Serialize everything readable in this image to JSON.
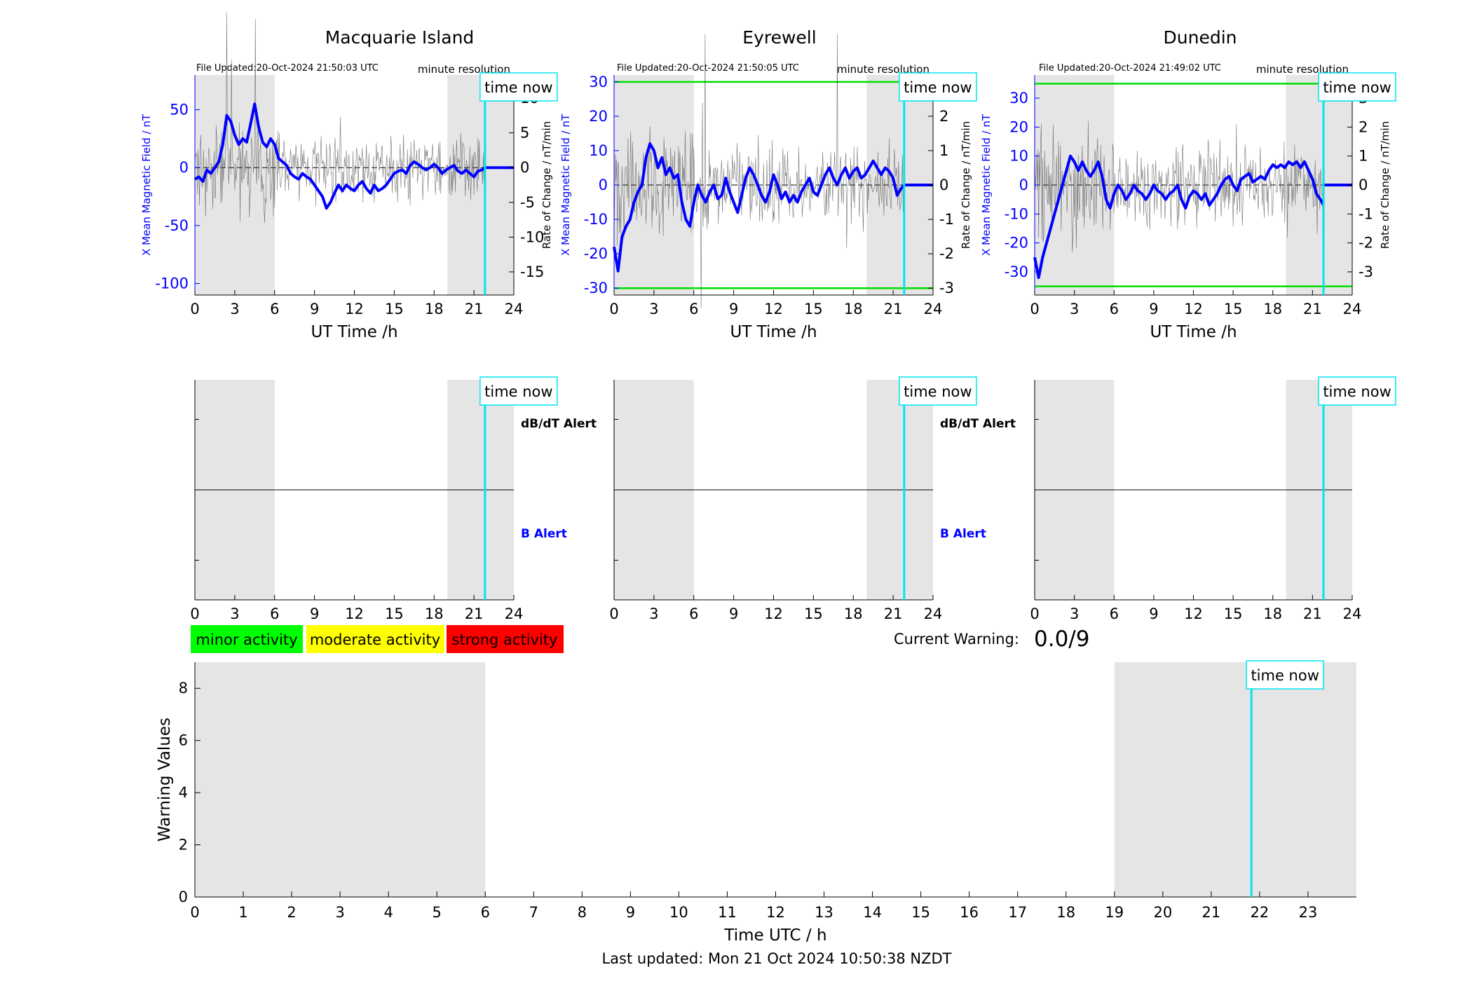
{
  "colors": {
    "field": "#0000ff",
    "rate": "#000000",
    "night": "#e5e5e5",
    "now": "#00e5ee",
    "threshold": "#00dd00",
    "minor": "#00ff00",
    "moderate": "#ffff00",
    "strong": "#ff0000"
  },
  "common": {
    "time_now_label": "time now",
    "minute_resolution": "minute resolution",
    "xlabel": "UT Time /h",
    "ylabel_left": "X Mean Magnetic Field / nT",
    "ylabel_right": "Rate of Change / nT/min",
    "alert_dbdt": "dB/dT Alert",
    "alert_b": "B Alert",
    "now_hour": 21.83
  },
  "legend": {
    "minor": "minor activity",
    "moderate": "moderate activity",
    "strong": "strong activity"
  },
  "current_warning": {
    "label": "Current Warning:",
    "value": "0.0/9"
  },
  "last_updated": "Last updated: Mon 21 Oct 2024 10:50:38 NZDT",
  "chart_data": [
    {
      "type": "line",
      "title": "Macquarie Island",
      "file_updated": "File Updated:20-Oct-2024 21:50:03 UTC",
      "xlabel": "UT Time /h",
      "ylabel": "X Mean Magnetic Field / nT",
      "ylabel_right": "Rate of Change / nT/min",
      "xlim": [
        0,
        24
      ],
      "ylim": [
        -110,
        80
      ],
      "ylim_right": [
        -18.33,
        13.33
      ],
      "xticks": [
        0,
        3,
        6,
        9,
        12,
        15,
        18,
        21,
        24
      ],
      "yticks": [
        -100,
        -50,
        0,
        50
      ],
      "yticks_right": [
        -15,
        -10,
        -5,
        0,
        5,
        10
      ],
      "night_bands": [
        [
          0,
          6
        ],
        [
          19,
          24
        ]
      ],
      "threshold_lines": [],
      "series": [
        {
          "x": [
            0,
            0.3,
            0.6,
            0.9,
            1.2,
            1.5,
            1.8,
            2.1,
            2.4,
            2.7,
            3.0,
            3.3,
            3.6,
            3.9,
            4.2,
            4.5,
            4.8,
            5.1,
            5.4,
            5.7,
            6.0,
            6.3,
            6.6,
            6.9,
            7.2,
            7.5,
            7.8,
            8.1,
            8.4,
            8.7,
            9.0,
            9.3,
            9.6,
            9.9,
            10.2,
            10.5,
            10.8,
            11.1,
            11.4,
            11.7,
            12.0,
            12.3,
            12.6,
            12.9,
            13.2,
            13.5,
            13.8,
            14.1,
            14.4,
            14.7,
            15.0,
            15.3,
            15.6,
            15.9,
            16.2,
            16.5,
            16.8,
            17.1,
            17.4,
            17.7,
            18.0,
            18.3,
            18.6,
            18.9,
            19.2,
            19.5,
            19.8,
            20.1,
            20.4,
            20.7,
            21.0,
            21.3,
            21.6,
            21.83
          ],
          "y": [
            -10,
            -8,
            -12,
            -2,
            -5,
            0,
            5,
            20,
            45,
            40,
            28,
            20,
            25,
            22,
            38,
            55,
            35,
            22,
            18,
            25,
            20,
            8,
            5,
            2,
            -5,
            -8,
            -10,
            -5,
            -8,
            -10,
            -15,
            -20,
            -25,
            -35,
            -30,
            -22,
            -15,
            -20,
            -15,
            -18,
            -20,
            -15,
            -12,
            -18,
            -22,
            -15,
            -20,
            -18,
            -15,
            -10,
            -5,
            -3,
            -2,
            -5,
            2,
            5,
            3,
            0,
            -2,
            0,
            3,
            0,
            -5,
            -2,
            0,
            2,
            -3,
            -5,
            -2,
            -5,
            -8,
            -3,
            -2,
            0
          ]
        }
      ],
      "baseline_after_now": 0
    },
    {
      "type": "line",
      "title": "Eyrewell",
      "file_updated": "File Updated:20-Oct-2024 21:50:05 UTC",
      "xlabel": "UT Time /h",
      "ylabel": "X Mean Magnetic Field / nT",
      "ylabel_right": "Rate of Change / nT/min",
      "xlim": [
        0,
        24
      ],
      "ylim": [
        -32,
        32
      ],
      "ylim_right": [
        -3.2,
        3.2
      ],
      "xticks": [
        0,
        3,
        6,
        9,
        12,
        15,
        18,
        21,
        24
      ],
      "yticks": [
        -30,
        -20,
        -10,
        0,
        10,
        20,
        30
      ],
      "yticks_right": [
        -3,
        -2,
        -1,
        0,
        1,
        2,
        3
      ],
      "night_bands": [
        [
          0,
          6
        ],
        [
          19,
          24
        ]
      ],
      "threshold_lines": [
        30,
        -30
      ],
      "series": [
        {
          "x": [
            0,
            0.3,
            0.6,
            0.9,
            1.2,
            1.5,
            1.8,
            2.1,
            2.4,
            2.7,
            3.0,
            3.3,
            3.6,
            3.9,
            4.2,
            4.5,
            4.8,
            5.1,
            5.4,
            5.7,
            6.0,
            6.3,
            6.6,
            6.9,
            7.2,
            7.5,
            7.8,
            8.1,
            8.4,
            8.7,
            9.0,
            9.3,
            9.6,
            9.9,
            10.2,
            10.5,
            10.8,
            11.1,
            11.4,
            11.7,
            12.0,
            12.3,
            12.6,
            12.9,
            13.2,
            13.5,
            13.8,
            14.1,
            14.4,
            14.7,
            15.0,
            15.3,
            15.6,
            15.9,
            16.2,
            16.5,
            16.8,
            17.1,
            17.4,
            17.7,
            18.0,
            18.3,
            18.6,
            18.9,
            19.2,
            19.5,
            19.8,
            20.1,
            20.4,
            20.7,
            21.0,
            21.3,
            21.6,
            21.83
          ],
          "y": [
            -18,
            -25,
            -15,
            -12,
            -10,
            -5,
            -2,
            0,
            8,
            12,
            10,
            5,
            8,
            3,
            5,
            2,
            3,
            -5,
            -10,
            -12,
            -5,
            0,
            -3,
            -5,
            -2,
            0,
            -4,
            -3,
            2,
            -2,
            -5,
            -8,
            -3,
            2,
            5,
            3,
            0,
            -3,
            -5,
            -2,
            3,
            0,
            -4,
            -2,
            -5,
            -3,
            -5,
            -2,
            0,
            2,
            -2,
            -3,
            0,
            3,
            5,
            2,
            0,
            3,
            5,
            2,
            4,
            5,
            2,
            3,
            5,
            7,
            5,
            3,
            5,
            4,
            2,
            -3,
            -1,
            0
          ]
        }
      ],
      "baseline_after_now": 0
    },
    {
      "type": "line",
      "title": "Dunedin",
      "file_updated": "File Updated:20-Oct-2024 21:49:02 UTC",
      "xlabel": "UT Time /h",
      "ylabel": "X Mean Magnetic Field / nT",
      "ylabel_right": "Rate of Change / nT/min",
      "xlim": [
        0,
        24
      ],
      "ylim": [
        -38,
        38
      ],
      "ylim_right": [
        -3.8,
        3.8
      ],
      "xticks": [
        0,
        3,
        6,
        9,
        12,
        15,
        18,
        21,
        24
      ],
      "yticks": [
        -30,
        -20,
        -10,
        0,
        10,
        20,
        30
      ],
      "yticks_right": [
        -3,
        -2,
        -1,
        0,
        1,
        2,
        3
      ],
      "night_bands": [
        [
          0,
          6
        ],
        [
          19,
          24
        ]
      ],
      "threshold_lines": [
        35,
        -35
      ],
      "series": [
        {
          "x": [
            0,
            0.3,
            0.6,
            0.9,
            1.2,
            1.5,
            1.8,
            2.1,
            2.4,
            2.7,
            3.0,
            3.3,
            3.6,
            3.9,
            4.2,
            4.5,
            4.8,
            5.1,
            5.4,
            5.7,
            6.0,
            6.3,
            6.6,
            6.9,
            7.2,
            7.5,
            7.8,
            8.1,
            8.4,
            8.7,
            9.0,
            9.3,
            9.6,
            9.9,
            10.2,
            10.5,
            10.8,
            11.1,
            11.4,
            11.7,
            12.0,
            12.3,
            12.6,
            12.9,
            13.2,
            13.5,
            13.8,
            14.1,
            14.4,
            14.7,
            15.0,
            15.3,
            15.6,
            15.9,
            16.2,
            16.5,
            16.8,
            17.1,
            17.4,
            17.7,
            18.0,
            18.3,
            18.6,
            18.9,
            19.2,
            19.5,
            19.8,
            20.1,
            20.4,
            20.7,
            21.0,
            21.3,
            21.6,
            21.83
          ],
          "y": [
            -25,
            -32,
            -25,
            -20,
            -15,
            -10,
            -5,
            0,
            5,
            10,
            8,
            5,
            8,
            5,
            3,
            5,
            8,
            3,
            -5,
            -8,
            -3,
            0,
            -2,
            -5,
            -3,
            0,
            -2,
            -3,
            -5,
            -3,
            0,
            -2,
            -3,
            -5,
            -3,
            -2,
            0,
            -5,
            -8,
            -4,
            -2,
            -3,
            -5,
            -3,
            -7,
            -5,
            -3,
            0,
            2,
            3,
            0,
            -2,
            2,
            3,
            4,
            1,
            2,
            3,
            2,
            5,
            7,
            6,
            7,
            6,
            8,
            7,
            8,
            6,
            8,
            5,
            2,
            -3,
            -5,
            -7
          ]
        }
      ],
      "baseline_after_now": 0
    },
    {
      "type": "line",
      "title": "",
      "xlim": [
        0,
        24
      ],
      "xticks": [
        0,
        3,
        6,
        9,
        12,
        15,
        18,
        21,
        24
      ],
      "night_bands": [
        [
          0,
          6
        ],
        [
          19,
          24
        ]
      ],
      "labels": [
        "dB/dT Alert",
        "B Alert"
      ],
      "series": []
    },
    {
      "type": "line",
      "title": "",
      "xlim": [
        0,
        24
      ],
      "xticks": [
        0,
        3,
        6,
        9,
        12,
        15,
        18,
        21,
        24
      ],
      "night_bands": [
        [
          0,
          6
        ],
        [
          19,
          24
        ]
      ],
      "labels": [
        "dB/dT Alert",
        "B Alert"
      ],
      "series": []
    },
    {
      "type": "line",
      "title": "",
      "xlim": [
        0,
        24
      ],
      "xticks": [
        0,
        3,
        6,
        9,
        12,
        15,
        18,
        21,
        24
      ],
      "night_bands": [
        [
          0,
          6
        ],
        [
          19,
          24
        ]
      ],
      "labels": [],
      "series": []
    },
    {
      "type": "bar",
      "title": "",
      "xlabel": "Time UTC / h",
      "ylabel": "Warning Values",
      "xlim": [
        0,
        24
      ],
      "ylim": [
        0,
        9
      ],
      "xticks": [
        0,
        1,
        2,
        3,
        4,
        5,
        6,
        7,
        8,
        9,
        10,
        11,
        12,
        13,
        14,
        15,
        16,
        17,
        18,
        19,
        20,
        21,
        22,
        23
      ],
      "yticks": [
        0,
        2,
        4,
        6,
        8
      ],
      "night_bands": [
        [
          0,
          6
        ],
        [
          19,
          24
        ]
      ],
      "series": []
    }
  ]
}
